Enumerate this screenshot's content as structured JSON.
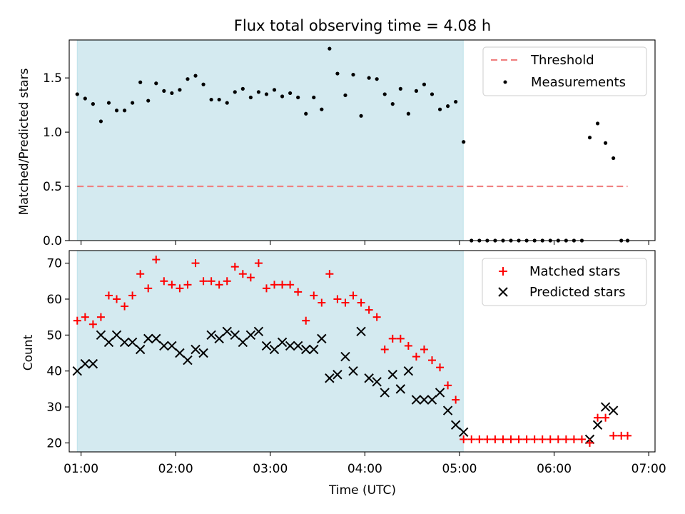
{
  "title": "Flux total observing time = 4.08 h",
  "xlabel": "Time (UTC)",
  "xticks": [
    {
      "t": 60,
      "label": "01:00"
    },
    {
      "t": 120,
      "label": "02:00"
    },
    {
      "t": 180,
      "label": "03:00"
    },
    {
      "t": 240,
      "label": "04:00"
    },
    {
      "t": 300,
      "label": "05:00"
    },
    {
      "t": 360,
      "label": "06:00"
    },
    {
      "t": 420,
      "label": "07:00"
    }
  ],
  "xlim": [
    52.5,
    424
  ],
  "observing_window": [
    57.6,
    302.4
  ],
  "chart_data": [
    {
      "type": "scatter",
      "panel": "top",
      "ylabel": "Matched/Predicted stars",
      "ylim": [
        0,
        1.85
      ],
      "yticks": [
        {
          "v": 0.0,
          "label": "0.0"
        },
        {
          "v": 0.5,
          "label": "0.5"
        },
        {
          "v": 1.0,
          "label": "1.0"
        },
        {
          "v": 1.5,
          "label": "1.5"
        }
      ],
      "threshold": {
        "name": "Threshold",
        "value": 0.5,
        "x_range": [
          57.6,
          406.6
        ],
        "color": "#f08080"
      },
      "legend": [
        "Threshold",
        "Measurements"
      ],
      "series": [
        {
          "name": "Measurements",
          "color": "#000000",
          "points": [
            [
              57.6,
              1.35
            ],
            [
              62.6,
              1.31
            ],
            [
              67.6,
              1.26
            ],
            [
              72.6,
              1.1
            ],
            [
              77.6,
              1.27
            ],
            [
              82.6,
              1.2
            ],
            [
              87.6,
              1.2
            ],
            [
              92.6,
              1.27
            ],
            [
              97.6,
              1.46
            ],
            [
              102.6,
              1.29
            ],
            [
              107.6,
              1.45
            ],
            [
              112.6,
              1.38
            ],
            [
              117.6,
              1.36
            ],
            [
              122.6,
              1.39
            ],
            [
              127.6,
              1.49
            ],
            [
              132.6,
              1.52
            ],
            [
              137.6,
              1.44
            ],
            [
              142.6,
              1.3
            ],
            [
              147.6,
              1.3
            ],
            [
              152.6,
              1.27
            ],
            [
              157.6,
              1.37
            ],
            [
              162.6,
              1.4
            ],
            [
              167.6,
              1.32
            ],
            [
              172.6,
              1.37
            ],
            [
              177.6,
              1.35
            ],
            [
              182.6,
              1.39
            ],
            [
              187.6,
              1.33
            ],
            [
              192.6,
              1.36
            ],
            [
              197.6,
              1.32
            ],
            [
              202.6,
              1.17
            ],
            [
              207.6,
              1.32
            ],
            [
              212.6,
              1.21
            ],
            [
              217.6,
              1.77
            ],
            [
              222.6,
              1.54
            ],
            [
              227.6,
              1.34
            ],
            [
              232.6,
              1.53
            ],
            [
              237.6,
              1.15
            ],
            [
              242.6,
              1.5
            ],
            [
              247.6,
              1.49
            ],
            [
              252.6,
              1.35
            ],
            [
              257.6,
              1.26
            ],
            [
              262.6,
              1.4
            ],
            [
              267.6,
              1.17
            ],
            [
              272.6,
              1.38
            ],
            [
              277.6,
              1.44
            ],
            [
              282.6,
              1.35
            ],
            [
              287.6,
              1.21
            ],
            [
              292.6,
              1.24
            ],
            [
              297.6,
              1.28
            ],
            [
              302.6,
              0.91
            ],
            [
              307.6,
              0
            ],
            [
              312.6,
              0
            ],
            [
              317.6,
              0
            ],
            [
              322.6,
              0
            ],
            [
              327.6,
              0
            ],
            [
              332.6,
              0
            ],
            [
              337.6,
              0
            ],
            [
              342.6,
              0
            ],
            [
              347.6,
              0
            ],
            [
              352.6,
              0
            ],
            [
              357.6,
              0
            ],
            [
              362.6,
              0
            ],
            [
              367.6,
              0
            ],
            [
              372.6,
              0
            ],
            [
              377.6,
              0
            ],
            [
              382.6,
              0.95
            ],
            [
              387.6,
              1.08
            ],
            [
              392.6,
              0.9
            ],
            [
              397.6,
              0.76
            ],
            [
              402.6,
              0
            ],
            [
              406.6,
              0
            ]
          ]
        }
      ]
    },
    {
      "type": "scatter",
      "panel": "bottom",
      "ylabel": "Count",
      "ylim": [
        17.5,
        73.5
      ],
      "yticks": [
        {
          "v": 20,
          "label": "20"
        },
        {
          "v": 30,
          "label": "30"
        },
        {
          "v": 40,
          "label": "40"
        },
        {
          "v": 50,
          "label": "50"
        },
        {
          "v": 60,
          "label": "60"
        },
        {
          "v": 70,
          "label": "70"
        }
      ],
      "legend": [
        "Matched stars",
        "Predicted stars"
      ],
      "series": [
        {
          "name": "Matched stars",
          "marker": "plus",
          "color": "#ff0000",
          "points": [
            [
              57.6,
              54
            ],
            [
              62.6,
              55
            ],
            [
              67.6,
              53
            ],
            [
              72.6,
              55
            ],
            [
              77.6,
              61
            ],
            [
              82.6,
              60
            ],
            [
              87.6,
              58
            ],
            [
              92.6,
              61
            ],
            [
              97.6,
              67
            ],
            [
              102.6,
              63
            ],
            [
              107.6,
              71
            ],
            [
              112.6,
              65
            ],
            [
              117.6,
              64
            ],
            [
              122.6,
              63
            ],
            [
              127.6,
              64
            ],
            [
              132.6,
              70
            ],
            [
              137.6,
              65
            ],
            [
              142.6,
              65
            ],
            [
              147.6,
              64
            ],
            [
              152.6,
              65
            ],
            [
              157.6,
              69
            ],
            [
              162.6,
              67
            ],
            [
              167.6,
              66
            ],
            [
              172.6,
              70
            ],
            [
              177.6,
              63
            ],
            [
              182.6,
              64
            ],
            [
              187.6,
              64
            ],
            [
              192.6,
              64
            ],
            [
              197.6,
              62
            ],
            [
              202.6,
              54
            ],
            [
              207.6,
              61
            ],
            [
              212.6,
              59
            ],
            [
              217.6,
              67
            ],
            [
              222.6,
              60
            ],
            [
              227.6,
              59
            ],
            [
              232.6,
              61
            ],
            [
              237.6,
              59
            ],
            [
              242.6,
              57
            ],
            [
              247.6,
              55
            ],
            [
              252.6,
              46
            ],
            [
              257.6,
              49
            ],
            [
              262.6,
              49
            ],
            [
              267.6,
              47
            ],
            [
              272.6,
              44
            ],
            [
              277.6,
              46
            ],
            [
              282.6,
              43
            ],
            [
              287.6,
              41
            ],
            [
              292.6,
              36
            ],
            [
              297.6,
              32
            ],
            [
              302.6,
              21
            ],
            [
              307.6,
              21
            ],
            [
              312.6,
              21
            ],
            [
              317.6,
              21
            ],
            [
              322.6,
              21
            ],
            [
              327.6,
              21
            ],
            [
              332.6,
              21
            ],
            [
              337.6,
              21
            ],
            [
              342.6,
              21
            ],
            [
              347.6,
              21
            ],
            [
              352.6,
              21
            ],
            [
              357.6,
              21
            ],
            [
              362.6,
              21
            ],
            [
              367.6,
              21
            ],
            [
              372.6,
              21
            ],
            [
              377.6,
              21
            ],
            [
              382.6,
              20
            ],
            [
              387.6,
              27
            ],
            [
              392.6,
              27
            ],
            [
              397.6,
              22
            ],
            [
              402.6,
              22
            ],
            [
              406.6,
              22
            ]
          ]
        },
        {
          "name": "Predicted stars",
          "marker": "x",
          "color": "#000000",
          "points": [
            [
              57.6,
              40
            ],
            [
              62.6,
              42
            ],
            [
              67.6,
              42
            ],
            [
              72.6,
              50
            ],
            [
              77.6,
              48
            ],
            [
              82.6,
              50
            ],
            [
              87.6,
              48
            ],
            [
              92.6,
              48
            ],
            [
              97.6,
              46
            ],
            [
              102.6,
              49
            ],
            [
              107.6,
              49
            ],
            [
              112.6,
              47
            ],
            [
              117.6,
              47
            ],
            [
              122.6,
              45
            ],
            [
              127.6,
              43
            ],
            [
              132.6,
              46
            ],
            [
              137.6,
              45
            ],
            [
              142.6,
              50
            ],
            [
              147.6,
              49
            ],
            [
              152.6,
              51
            ],
            [
              157.6,
              50
            ],
            [
              162.6,
              48
            ],
            [
              167.6,
              50
            ],
            [
              172.6,
              51
            ],
            [
              177.6,
              47
            ],
            [
              182.6,
              46
            ],
            [
              187.6,
              48
            ],
            [
              192.6,
              47
            ],
            [
              197.6,
              47
            ],
            [
              202.6,
              46
            ],
            [
              207.6,
              46
            ],
            [
              212.6,
              49
            ],
            [
              217.6,
              38
            ],
            [
              222.6,
              39
            ],
            [
              227.6,
              44
            ],
            [
              232.6,
              40
            ],
            [
              237.6,
              51
            ],
            [
              242.6,
              38
            ],
            [
              247.6,
              37
            ],
            [
              252.6,
              34
            ],
            [
              257.6,
              39
            ],
            [
              262.6,
              35
            ],
            [
              267.6,
              40
            ],
            [
              272.6,
              32
            ],
            [
              277.6,
              32
            ],
            [
              282.6,
              32
            ],
            [
              287.6,
              34
            ],
            [
              292.6,
              29
            ],
            [
              297.6,
              25
            ],
            [
              302.6,
              23
            ],
            [
              382.6,
              21
            ],
            [
              387.6,
              25
            ],
            [
              392.6,
              30
            ],
            [
              397.6,
              29
            ]
          ]
        }
      ]
    }
  ]
}
